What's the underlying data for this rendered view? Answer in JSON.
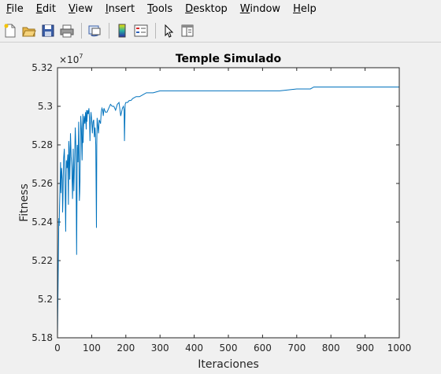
{
  "menu": [
    "File",
    "Edit",
    "View",
    "Insert",
    "Tools",
    "Desktop",
    "Window",
    "Help"
  ],
  "menu_underline_index": [
    0,
    0,
    0,
    0,
    0,
    0,
    0,
    0
  ],
  "toolbar": {
    "icons": [
      "new-figure-icon",
      "open-file-icon",
      "save-icon",
      "print-icon",
      "link-plot-icon",
      "insert-colorbar-icon",
      "insert-legend-icon",
      "edit-plot-arrow-icon",
      "property-inspector-icon"
    ]
  },
  "colors": {
    "line": "#0072bd",
    "axis": "#262626",
    "plot_bg": "#ffffff",
    "figure_bg": "#f0f0f0"
  },
  "chart_data": {
    "type": "line",
    "title": "Temple Simulado",
    "xlabel": "Iteraciones",
    "ylabel": "Fitness",
    "exponent_label": "×10",
    "exponent_power": "7",
    "xlim": [
      0,
      1000
    ],
    "ylim": [
      5.18,
      5.32
    ],
    "xticks": [
      0,
      100,
      200,
      300,
      400,
      500,
      600,
      700,
      800,
      900,
      1000
    ],
    "yticks": [
      5.18,
      5.2,
      5.22,
      5.24,
      5.26,
      5.28,
      5.3,
      5.32
    ],
    "ytick_labels": [
      "5.18",
      "5.2",
      "5.22",
      "5.24",
      "5.26",
      "5.28",
      "5.3",
      "5.32"
    ],
    "grid": false,
    "series": [
      {
        "x": [
          0,
          2,
          4,
          5,
          6,
          8,
          9,
          10,
          12,
          14,
          15,
          16,
          18,
          20,
          22,
          24,
          25,
          26,
          28,
          30,
          32,
          33,
          34,
          36,
          38,
          40,
          42,
          44,
          45,
          46,
          48,
          50,
          52,
          54,
          55,
          56,
          58,
          60,
          62,
          64,
          65,
          66,
          68,
          70,
          72,
          74,
          75,
          76,
          78,
          80,
          82,
          84,
          85,
          86,
          88,
          90,
          92,
          94,
          95,
          96,
          98,
          100,
          102,
          104,
          106,
          108,
          110,
          112,
          114,
          115,
          116,
          118,
          120,
          122,
          124,
          126,
          128,
          130,
          132,
          134,
          135,
          136,
          138,
          140,
          145,
          150,
          155,
          160,
          165,
          170,
          175,
          180,
          185,
          190,
          193,
          195,
          196,
          198,
          200,
          205,
          210,
          215,
          220,
          230,
          240,
          250,
          260,
          270,
          280,
          300,
          350,
          400,
          450,
          500,
          550,
          600,
          650,
          700,
          710,
          720,
          730,
          740,
          750,
          800,
          850,
          900,
          950,
          1000
        ],
        "y": [
          5.181,
          5.212,
          5.242,
          5.238,
          5.248,
          5.262,
          5.271,
          5.255,
          5.268,
          5.262,
          5.245,
          5.252,
          5.273,
          5.278,
          5.263,
          5.235,
          5.258,
          5.272,
          5.268,
          5.275,
          5.249,
          5.282,
          5.278,
          5.262,
          5.286,
          5.274,
          5.268,
          5.252,
          5.262,
          5.278,
          5.256,
          5.272,
          5.289,
          5.278,
          5.248,
          5.223,
          5.28,
          5.271,
          5.292,
          5.251,
          5.255,
          5.262,
          5.295,
          5.288,
          5.272,
          5.296,
          5.281,
          5.289,
          5.295,
          5.291,
          5.297,
          5.288,
          5.298,
          5.292,
          5.298,
          5.296,
          5.299,
          5.292,
          5.282,
          5.29,
          5.297,
          5.293,
          5.286,
          5.292,
          5.293,
          5.284,
          5.289,
          5.28,
          5.237,
          5.28,
          5.294,
          5.29,
          5.286,
          5.293,
          5.292,
          5.291,
          5.297,
          5.299,
          5.298,
          5.295,
          5.297,
          5.299,
          5.298,
          5.297,
          5.297,
          5.299,
          5.301,
          5.3,
          5.3,
          5.298,
          5.301,
          5.302,
          5.295,
          5.299,
          5.3,
          5.298,
          5.282,
          5.301,
          5.302,
          5.302,
          5.303,
          5.303,
          5.304,
          5.305,
          5.305,
          5.306,
          5.307,
          5.307,
          5.307,
          5.308,
          5.308,
          5.308,
          5.308,
          5.308,
          5.308,
          5.308,
          5.308,
          5.309,
          5.309,
          5.309,
          5.309,
          5.309,
          5.31,
          5.31,
          5.31,
          5.31,
          5.31,
          5.31
        ]
      }
    ]
  }
}
